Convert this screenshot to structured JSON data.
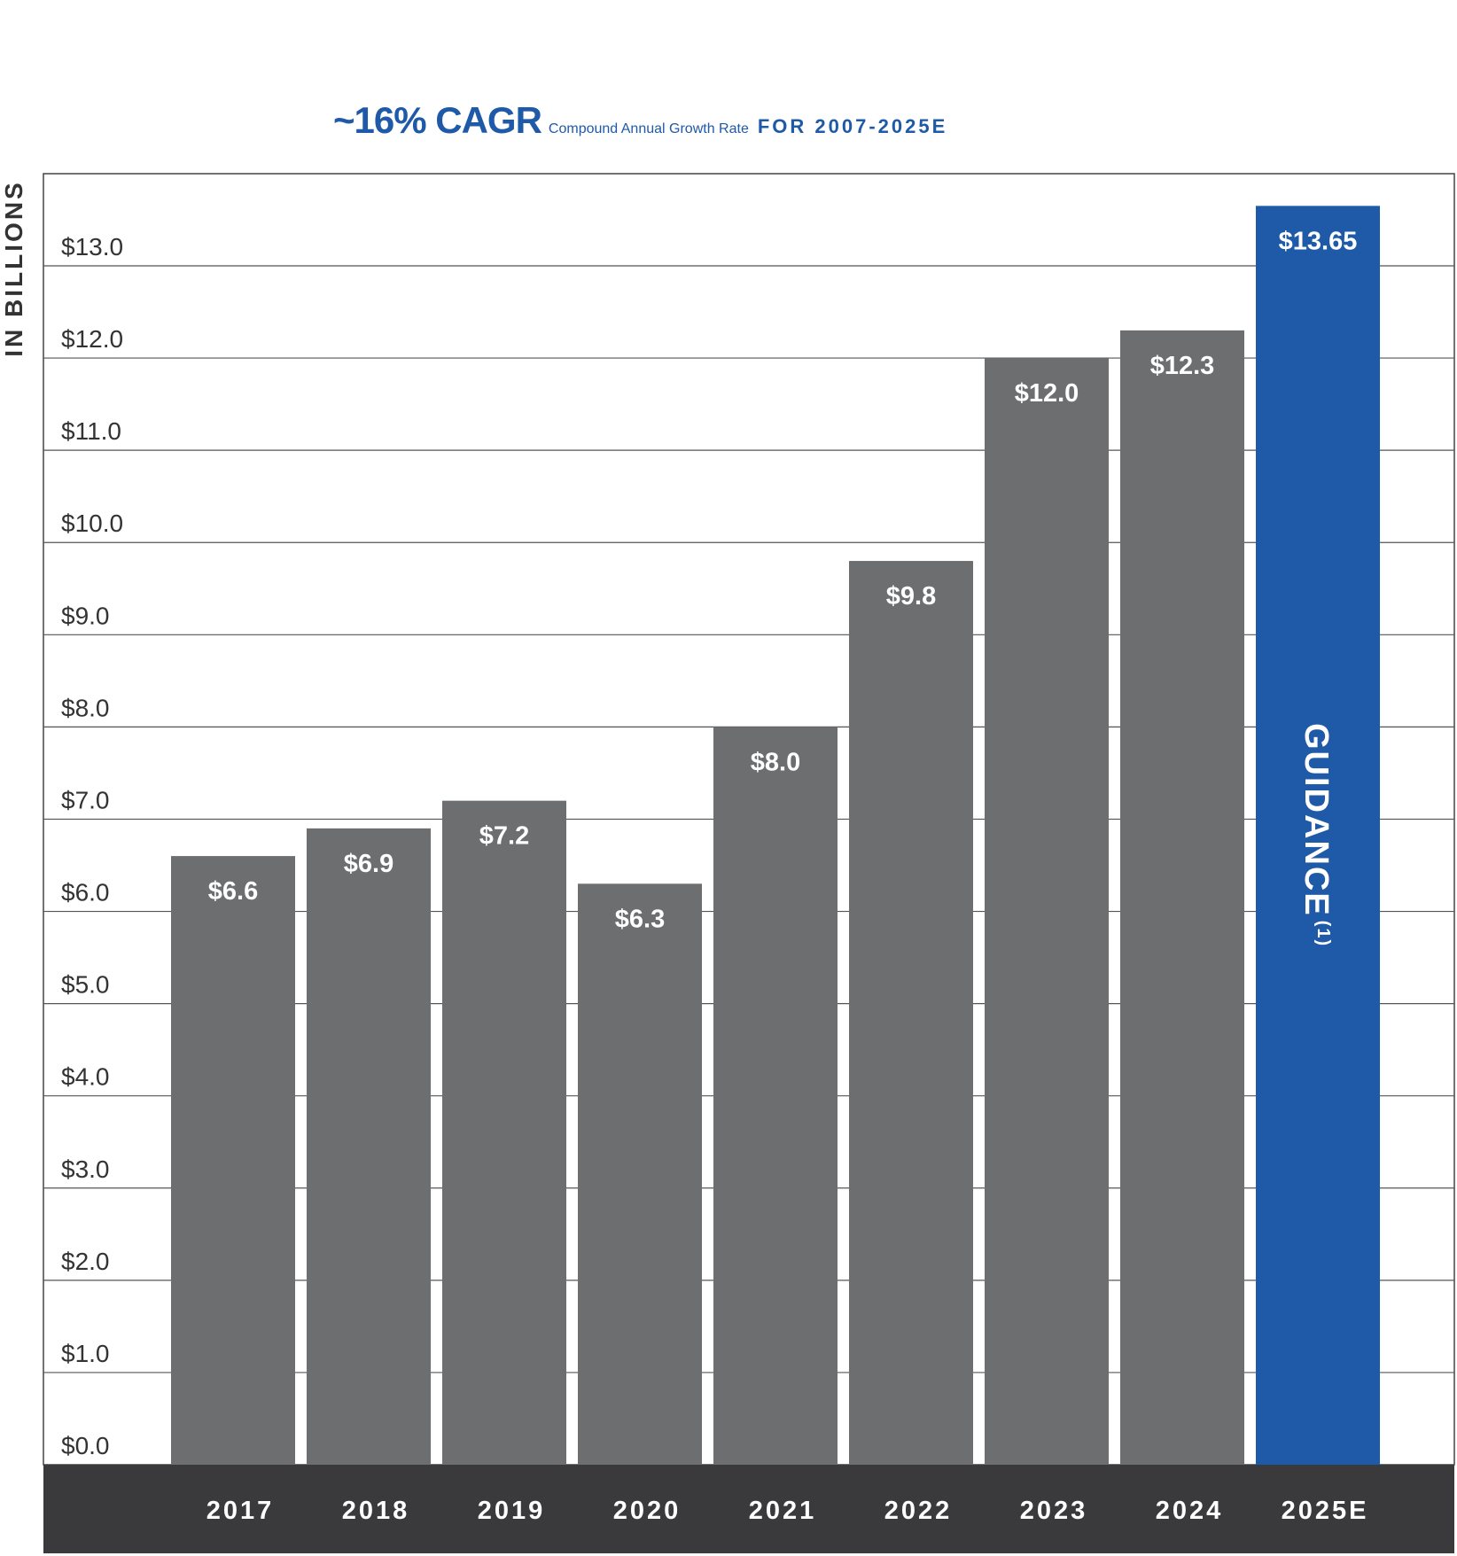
{
  "title": {
    "headline": "~16% CAGR",
    "definition": "Compound Annual Growth Rate",
    "period": "FOR 2007-2025E"
  },
  "chart_data": {
    "type": "bar",
    "title": "~16% CAGR Compound Annual Growth Rate FOR 2007-2025E",
    "xlabel": "",
    "ylabel": "IN BILLIONS",
    "ylim": [
      0,
      13.9
    ],
    "grid": true,
    "yticks": [
      "$0.0",
      "$1.0",
      "$2.0",
      "$3.0",
      "$4.0",
      "$5.0",
      "$6.0",
      "$7.0",
      "$8.0",
      "$9.0",
      "$10.0",
      "$11.0",
      "$12.0",
      "$13.0"
    ],
    "categories": [
      "2017",
      "2018",
      "2019",
      "2020",
      "2021",
      "2022",
      "2023",
      "2024",
      "2025E"
    ],
    "values": [
      6.6,
      6.9,
      7.2,
      6.3,
      8.0,
      9.8,
      12.0,
      12.3,
      13.65
    ],
    "data_labels": [
      "$6.6",
      "$6.9",
      "$7.2",
      "$6.3",
      "$8.0",
      "$9.8",
      "$12.0",
      "$12.3",
      "$13.65"
    ],
    "annotation": {
      "text": "GUIDANCE",
      "superscript": "(1)"
    },
    "colors": {
      "actual": "#6d6e70",
      "guidance": "#1f5aa8",
      "axis_band": "#3a3a3c",
      "grid": "#555555",
      "tick_text": "#333333"
    }
  }
}
